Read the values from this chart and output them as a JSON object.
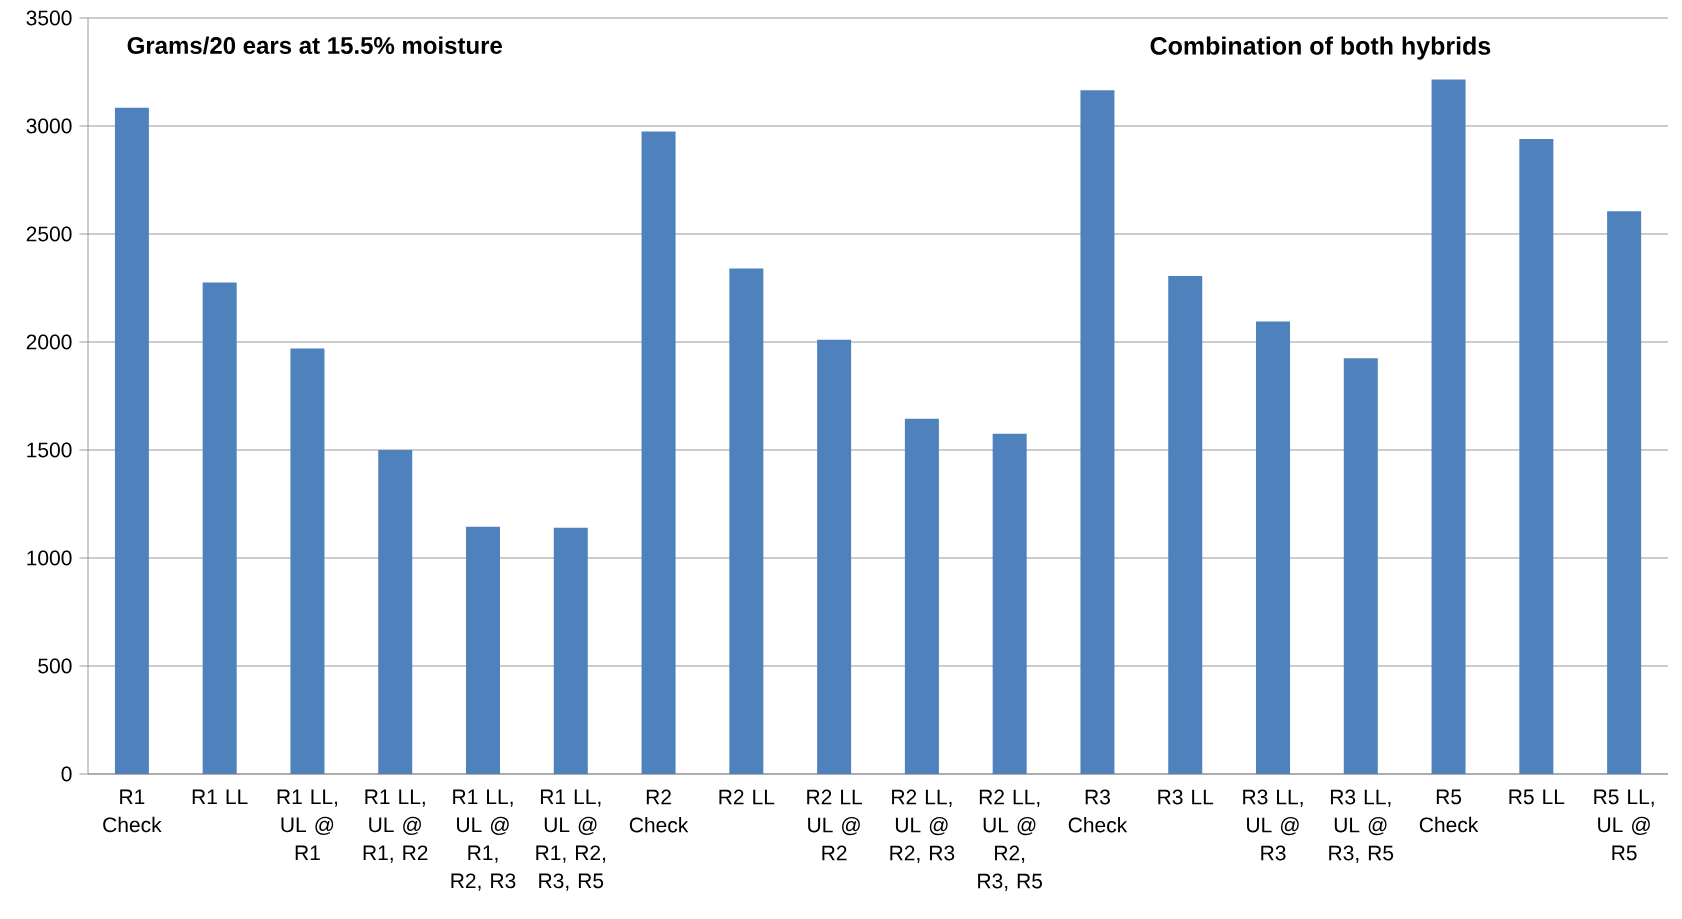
{
  "chart_data": {
    "type": "bar",
    "title": "Combination of both hybrids",
    "ylabel": "Grams/20 ears at 15.5% moisture",
    "categories": [
      "R1 Check",
      "R1 LL",
      "R1 LL, UL @ R1",
      "R1 LL, UL @ R1, R2",
      "R1 LL, UL @ R1, R2, R3",
      "R1 LL, UL @ R1, R2, R3, R5",
      "R2 Check",
      "R2 LL",
      "R2 LL UL @ R2",
      "R2 LL, UL @ R2, R3",
      "R2 LL, UL @ R2, R3, R5",
      "R3 Check",
      "R3 LL",
      "R3 LL, UL @ R3",
      "R3 LL, UL @ R3, R5",
      "R5 Check",
      "R5 LL",
      "R5 LL, UL @ R5"
    ],
    "values": [
      3085,
      2275,
      1970,
      1500,
      1145,
      1140,
      2975,
      2340,
      2010,
      1645,
      1575,
      3165,
      2305,
      2095,
      1925,
      3215,
      2940,
      2605
    ],
    "color": "#4f81bd",
    "ylim": [
      0,
      3500
    ],
    "yticks": [
      0,
      500,
      1000,
      1500,
      2000,
      2500,
      3000,
      3500
    ],
    "grid": "y"
  }
}
